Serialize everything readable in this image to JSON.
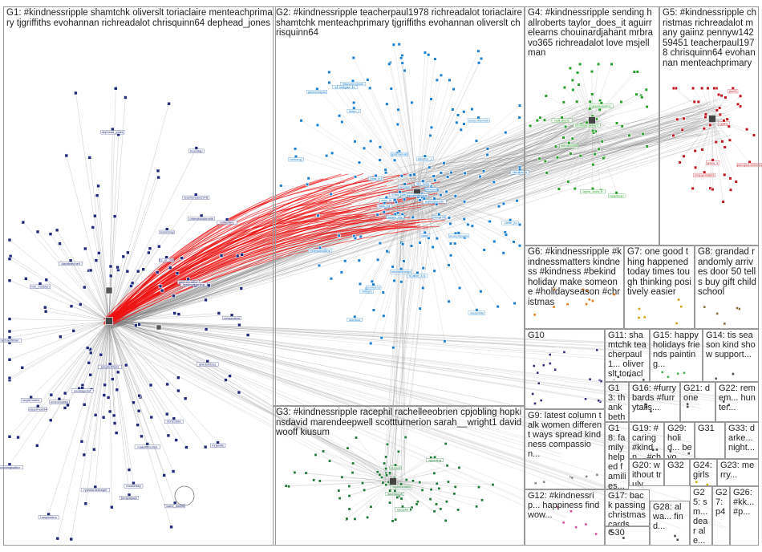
{
  "graph": {
    "groups": [
      {
        "id": "G1",
        "label": "G1: #kindnessripple shamtchk oliverslt toriaclaire menteachprimary tjgriffiths evohannan richreadalot chrisquinn64 dephead_jones",
        "color": "#1f2a7a"
      },
      {
        "id": "G2",
        "label": "G2: #kindnessripple teacherpaul1978 richreadalot toriaclaire shamtchk menteachprimary tjgriffiths evohannan oliverslt chrisquinn64",
        "color": "#1a7fd0"
      },
      {
        "id": "G3",
        "label": "G3: #kindnessripple racephil rachelleeobrien cpjobling hopkinsdavid marendeepwell scottturnerion sarah__wright1 davidwooff kiusum",
        "color": "#1e7a35"
      },
      {
        "id": "G4",
        "label": "G4: #kindnessripple sending hallroberts taylor_does_it aguirrelearns chouinardjahant mrbravo365 richreadalot love msjellman",
        "color": "#2aa02a"
      },
      {
        "id": "G5",
        "label": "G5: #kindnessripple christmas richreadalot many gaiinz pennyw14259451 teacherpaul1978 chrisquinn64 evohannan menteachprimary",
        "color": "#c0141e"
      },
      {
        "id": "G6",
        "label": "G6: #kindnessripple #kindnessmatters kindness #kindness #bekind holiday make someone #holidayseason #christmas",
        "color": "#e07b18"
      },
      {
        "id": "G7",
        "label": "G7: one good thing happened today times tough thinking positively easier",
        "color": "#d6a21a"
      },
      {
        "id": "G8",
        "label": "G8: grandad randomly arrives door 50 tells buy gift child school",
        "color": "#8a6d3b"
      },
      {
        "id": "G9",
        "label": "G9: latest column talk women different ways spread kindness compassion...",
        "color": "#9a9a9a"
      },
      {
        "id": "G10",
        "label": "G10",
        "color": "#3a2a7a"
      },
      {
        "id": "G11",
        "label": "G11: shamtchk teacherpaul1... oliverslt toriaclaire...",
        "color": "#555555"
      },
      {
        "id": "G12",
        "label": "G12: #kindnessrip... happiness find wow...",
        "color": "#d14ea0"
      },
      {
        "id": "G13",
        "label": "G13: thank betherip... joannas... warm...",
        "color": "#777777"
      },
      {
        "id": "G14",
        "label": "G14: tis season kind show support...",
        "color": "#555555"
      },
      {
        "id": "G15",
        "label": "G15: happy holidays friends painting...",
        "color": "#4caf50"
      },
      {
        "id": "G16",
        "label": "G16: #furrybards #furrytails...",
        "color": "#555555"
      },
      {
        "id": "G17",
        "label": "G17: back passing christmas cards...",
        "color": "#555555"
      },
      {
        "id": "G18",
        "label": "G18: family helped families...",
        "color": "#555555"
      },
      {
        "id": "G19",
        "label": "G19: #caring #kindn... #christi...",
        "color": "#555555"
      },
      {
        "id": "G20",
        "label": "G20: without truly",
        "color": "#555555"
      },
      {
        "id": "G21",
        "label": "G21: done",
        "color": "#555555"
      },
      {
        "id": "G22",
        "label": "G22: remem... hunter...",
        "color": "#555555"
      },
      {
        "id": "G23",
        "label": "G23: merry...",
        "color": "#555555"
      },
      {
        "id": "G24",
        "label": "G24: girls",
        "color": "#c9b000"
      },
      {
        "id": "G25",
        "label": "G25: sm... dear ale...",
        "color": "#555555"
      },
      {
        "id": "G26",
        "label": "G26: #kk... #p...",
        "color": "#555555"
      },
      {
        "id": "G27",
        "label": "G27: p4",
        "color": "#555555"
      },
      {
        "id": "G28",
        "label": "G28: alwa... find...",
        "color": "#555555"
      },
      {
        "id": "G29",
        "label": "G29: holid... beyo...",
        "color": "#555555"
      },
      {
        "id": "G30",
        "label": "G30",
        "color": "#555555"
      },
      {
        "id": "G31",
        "label": "G31",
        "color": "#555555"
      },
      {
        "id": "G32",
        "label": "G32",
        "color": "#555555"
      },
      {
        "id": "G33",
        "label": "G33: darke... night...",
        "color": "#555555"
      }
    ],
    "node_labels": {
      "G1": [
        "abirdshit2ss",
        "samuelcartwr",
        "teachingtwitter",
        "esgorman54",
        "rachaelfisher",
        "mrjwatts",
        "makeitflourish",
        "ryandanielknight",
        "mrs_mclaren",
        "leadinglearning",
        "dorisclara",
        "hanpitzdino",
        "lemonboy",
        "mr_m_chn",
        "teachtap",
        "davidmitchell",
        "marie_dobbs",
        "mrsbsmallbs",
        "saralagerlof",
        "mrssarahwr",
        "ordewtandonrnik",
        "teacherpaul1978",
        "rosskelsey",
        "benwallace",
        "toriaclaire",
        "juicybutttons",
        "dephead_jones",
        "lucybrhodes"
      ],
      "G2": [
        "mrshaw5",
        "kathtidecks",
        "sophieprior",
        "misschirpy",
        "lizzieplevenns",
        "georgelb",
        "lalal_pg",
        "hollingsworth",
        "gasmanuel",
        "mrsharringtonb",
        "michaelpodge",
        "davidredknapp",
        "mrsdelr",
        "helenslessons",
        "heather_s",
        "pmcgr00",
        "carolinebo",
        "claire_ju",
        "amy_tlt",
        "helen_f",
        "jamesrhapso",
        "mrbigrs",
        "misswhite",
        "stardust",
        "mrskempatlm",
        "susanmaxwell",
        "rpenl",
        "tim_kelly",
        "bethanyj",
        "nunnyroy",
        "jhbewu",
        "alice_k",
        "mrs_parr",
        "teach_ray",
        "kellyjae",
        "lisa_b"
      ],
      "G3": [
        "racephil",
        "cpjobling",
        "kiusum",
        "davidwooff",
        "hopkinsdavid"
      ],
      "G4": [
        "hallroberts",
        "taylor_does_it",
        "aguirrelearns",
        "chouinardjahant",
        "msjellman",
        "mrbravo365"
      ],
      "G5": [
        "gaiinz",
        "pennyw14259451",
        "jenny_k",
        "jhn93",
        "mrspyemailmr"
      ]
    },
    "legend_scale_note": ""
  }
}
